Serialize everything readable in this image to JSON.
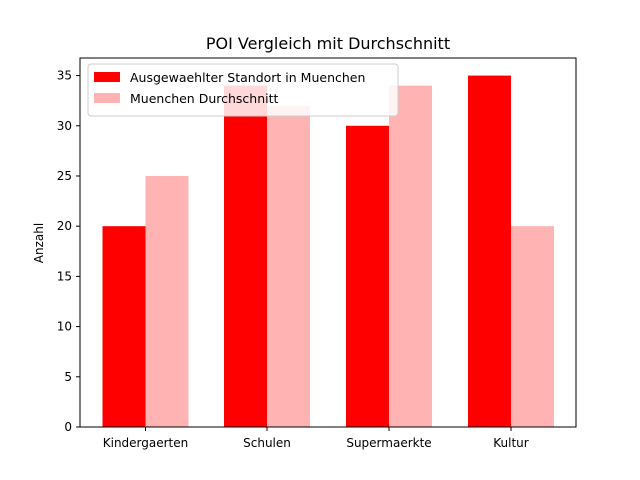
{
  "chart_data": {
    "type": "bar",
    "title": "POI Vergleich mit Durchschnitt",
    "xlabel": "",
    "ylabel": "Anzahl",
    "categories": [
      "Kindergaerten",
      "Schulen",
      "Supermaerkte",
      "Kultur"
    ],
    "series": [
      {
        "name": "Ausgewaehlter Standort in Muenchen",
        "values": [
          20,
          34,
          30,
          35
        ],
        "color": "#ff0000"
      },
      {
        "name": "Muenchen Durchschnitt",
        "values": [
          25,
          32,
          34,
          20
        ],
        "color": "#ffb3b3"
      }
    ],
    "ylim": [
      0,
      36.75
    ],
    "yticks": [
      0,
      5,
      10,
      15,
      20,
      25,
      30,
      35
    ],
    "grid": false,
    "legend_position": "top-left"
  }
}
